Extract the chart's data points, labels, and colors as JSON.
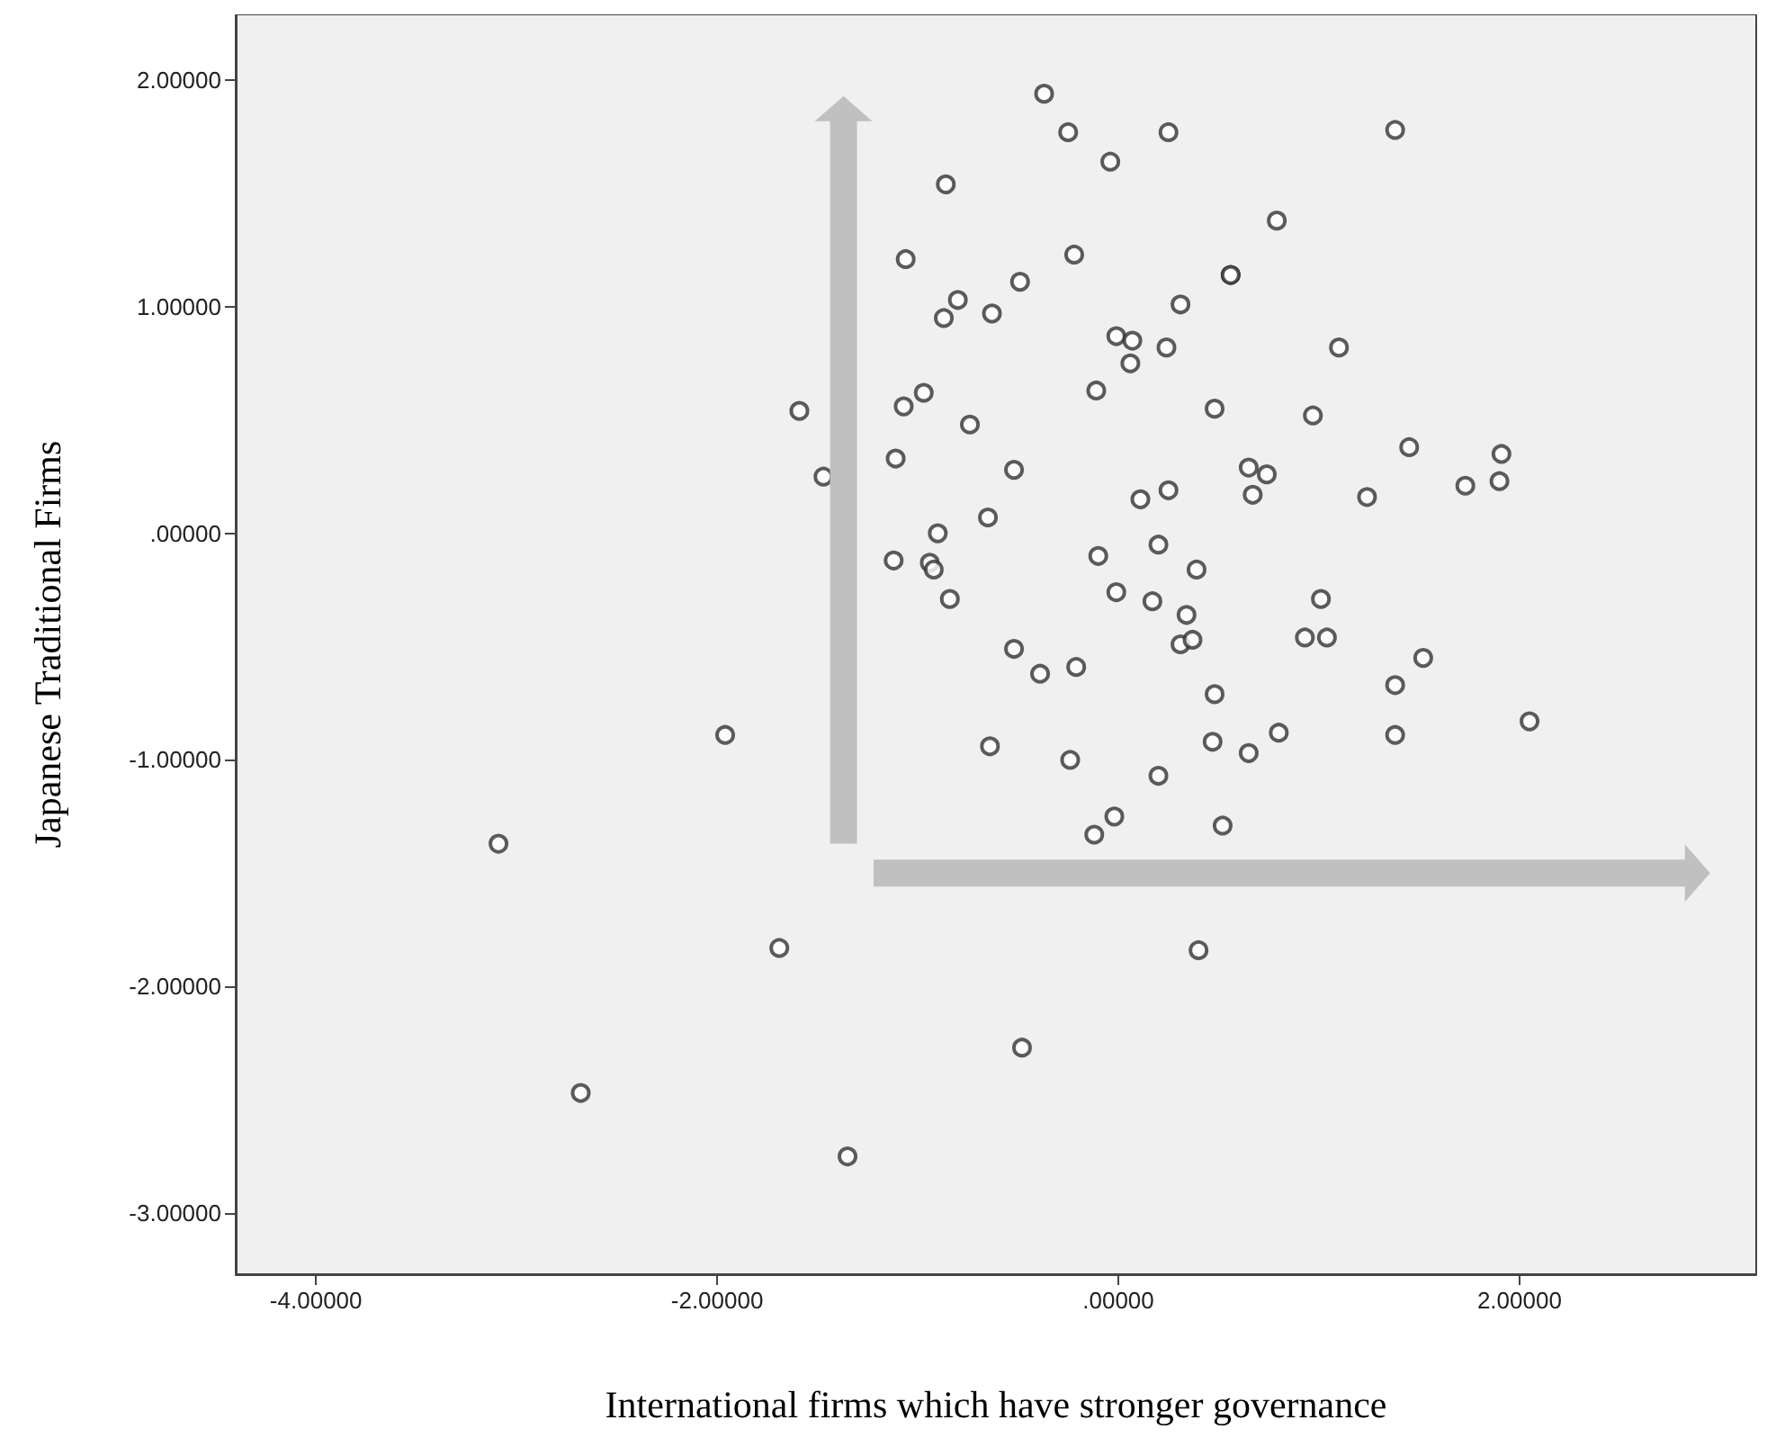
{
  "chart_data": {
    "type": "scatter",
    "xlabel": "International firms which have stronger governance",
    "ylabel": "Japanese Traditional Firms",
    "xlim": [
      -4.4,
      3.18
    ],
    "ylim": [
      -3.27,
      2.29
    ],
    "xticks": [
      {
        "value": -4,
        "label": "-4.00000"
      },
      {
        "value": -2,
        "label": "-2.00000"
      },
      {
        "value": 0,
        "label": ".00000"
      },
      {
        "value": 2,
        "label": "2.00000"
      }
    ],
    "yticks": [
      {
        "value": -3,
        "label": "-3.00000"
      },
      {
        "value": -2,
        "label": "-2.00000"
      },
      {
        "value": -1,
        "label": "-1.00000"
      },
      {
        "value": 0,
        "label": ".00000"
      },
      {
        "value": 1,
        "label": "1.00000"
      },
      {
        "value": 2,
        "label": "2.00000"
      }
    ],
    "marker": "circle",
    "series": [
      {
        "color": "#333333",
        "x": [
          -0.37,
          -0.25,
          -0.86,
          -1.06,
          -0.22,
          -0.49,
          -0.8,
          -0.87,
          -0.63,
          -1.59,
          -1.07,
          -0.97,
          -0.74,
          -1.47,
          -1.11,
          -0.52,
          -0.65,
          -0.9,
          -1.12,
          -0.94,
          -0.92,
          -0.84,
          -0.52,
          -0.39,
          -0.21,
          -1.96,
          -0.64,
          -0.24,
          -3.09,
          -1.69,
          -2.68,
          -1.35,
          -0.48,
          0.25,
          -0.04,
          1.38,
          0.79,
          0.56,
          0.56,
          0.31,
          -0.01,
          0.07,
          0.24,
          0.06,
          1.1,
          -0.11,
          0.48,
          0.97,
          1.45,
          1.91,
          0.65,
          0.74,
          0.67,
          1.73,
          1.9,
          1.24,
          0.25,
          0.11,
          0.2,
          -0.1,
          0.39,
          -0.01,
          0.17,
          0.34,
          0.31,
          0.37,
          1.01,
          0.93,
          1.04,
          1.52,
          1.38,
          0.48,
          2.05,
          1.38,
          0.8,
          0.65,
          0.47,
          0.2,
          -0.02,
          -0.12,
          0.52,
          0.4
        ],
        "values": [
          1.94,
          1.77,
          1.54,
          1.21,
          1.23,
          1.11,
          1.03,
          0.95,
          0.97,
          0.54,
          0.56,
          0.62,
          0.48,
          0.25,
          0.33,
          0.28,
          0.07,
          0.0,
          -0.12,
          -0.13,
          -0.16,
          -0.29,
          -0.51,
          -0.62,
          -0.59,
          -0.89,
          -0.94,
          -1.0,
          -1.37,
          -1.83,
          -2.47,
          -2.75,
          -2.27,
          1.77,
          1.64,
          1.78,
          1.38,
          1.14,
          1.14,
          1.01,
          0.87,
          0.85,
          0.82,
          0.75,
          0.82,
          0.63,
          0.55,
          0.52,
          0.38,
          0.35,
          0.29,
          0.26,
          0.17,
          0.21,
          0.23,
          0.16,
          0.19,
          0.15,
          -0.05,
          -0.1,
          -0.16,
          -0.26,
          -0.3,
          -0.36,
          -0.49,
          -0.47,
          -0.29,
          -0.46,
          -0.46,
          -0.55,
          -0.67,
          -0.71,
          -0.83,
          -0.89,
          -0.88,
          -0.97,
          -0.92,
          -1.07,
          -1.25,
          -1.33,
          -1.29,
          -1.84
        ]
      }
    ]
  }
}
